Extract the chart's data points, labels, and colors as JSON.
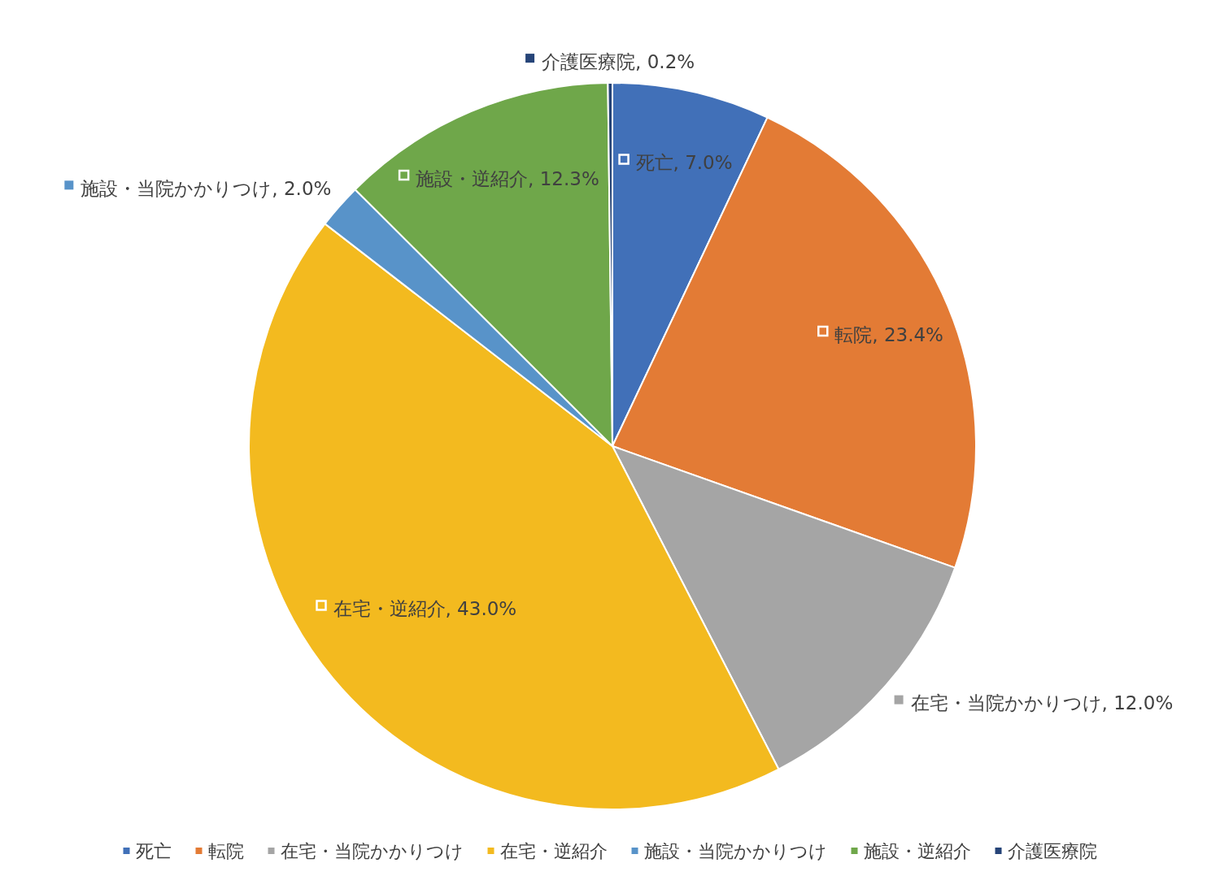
{
  "chart_data": {
    "type": "pie",
    "categories": [
      "死亡",
      "転院",
      "在宅・当院かかりつけ",
      "在宅・逆紹介",
      "施設・当院かかりつけ",
      "施設・逆紹介",
      "介護医療院"
    ],
    "values": [
      7.0,
      23.4,
      12.0,
      43.0,
      2.0,
      12.3,
      0.2
    ],
    "colors": [
      "#4170b8",
      "#e37b35",
      "#a5a5a5",
      "#f3ba1f",
      "#5893c9",
      "#6fa74a",
      "#264478"
    ],
    "value_labels": [
      "死亡, 7.0%",
      "転院, 23.4%",
      "在宅・当院かかりつけ, 12.0%",
      "在宅・逆紹介, 43.0%",
      "施設・当院かかりつけ, 2.0%",
      "施設・逆紹介, 12.3%",
      "介護医療院, 0.2%"
    ],
    "legend": "bottom"
  }
}
